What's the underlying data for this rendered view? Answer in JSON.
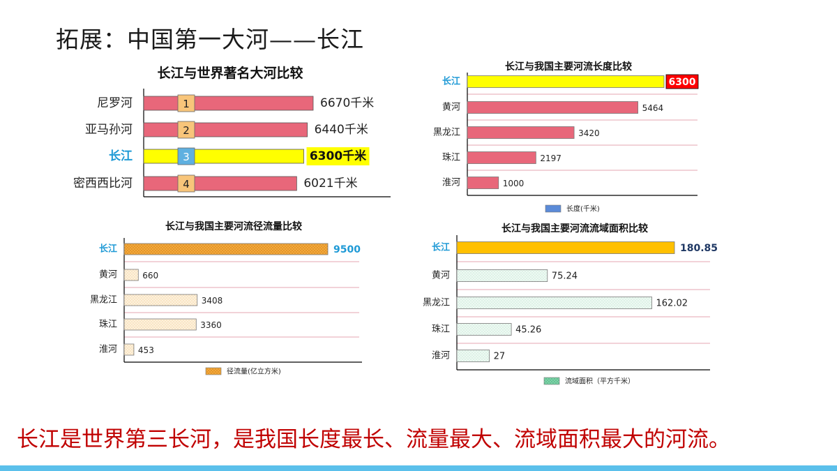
{
  "slide": {
    "title": "拓展：中国第一大河——长江",
    "conclusion": "长江是世界第三长河，是我国长度最长、流量最大、流域面积最大的河流。"
  },
  "colors": {
    "pink_bar": "#e8677a",
    "highlight_yellow": "#ffff00",
    "orange_bar": "#f4a93c",
    "gold_bar": "#ffc000",
    "beige_bar": "#fce9cc",
    "mint_bar": "#e6f6ef",
    "blue_label": "#1f9ad6",
    "red_label_bg": "#ff0000",
    "legend_blue": "#5b8bd8",
    "legend_green": "#7fd3a8",
    "navy_text": "#1f3864",
    "slide_red": "#c00000",
    "bottom_bar": "#5bc0eb"
  },
  "chart_data": [
    {
      "id": "world",
      "type": "bar",
      "orientation": "horizontal",
      "title": "长江与世界著名大河比较",
      "categories": [
        "尼罗河",
        "亚马孙河",
        "长江",
        "密西西比河"
      ],
      "values": [
        6670,
        6440,
        6300,
        6021
      ],
      "value_labels": [
        "6670千米",
        "6440千米",
        "6300千米",
        "6021千米"
      ],
      "rank_badges": [
        "1",
        "2",
        "3",
        "4"
      ],
      "highlight_index": 2,
      "grid": false,
      "legend": null
    },
    {
      "id": "length",
      "type": "bar",
      "orientation": "horizontal",
      "title": "长江与我国主要河流长度比较",
      "categories": [
        "长江",
        "黄河",
        "黑龙江",
        "珠江",
        "淮河"
      ],
      "values": [
        6300,
        5464,
        3420,
        2197,
        1000
      ],
      "value_labels": [
        "6300",
        "5464",
        "3420",
        "2197",
        "1000"
      ],
      "highlight_index": 0,
      "grid": true,
      "legend": "长度(千米)",
      "legend_position": "bottom"
    },
    {
      "id": "flow",
      "type": "bar",
      "orientation": "horizontal",
      "title": "长江与我国主要河流径流量比较",
      "categories": [
        "长江",
        "黄河",
        "黑龙江",
        "珠江",
        "淮河"
      ],
      "values": [
        9500,
        660,
        3408,
        3360,
        453
      ],
      "value_labels": [
        "9500",
        "660",
        "3408",
        "3360",
        "453"
      ],
      "highlight_index": 0,
      "grid": true,
      "legend": "径流量(亿立方米)",
      "legend_position": "bottom"
    },
    {
      "id": "area",
      "type": "bar",
      "orientation": "horizontal",
      "title": "长江与我国主要河流流域面积比较",
      "categories": [
        "长江",
        "黄河",
        "黑龙江",
        "珠江",
        "淮河"
      ],
      "values": [
        180.85,
        75.24,
        162.02,
        45.26,
        27
      ],
      "value_labels": [
        "180.85",
        "75.24",
        "162.02",
        "45.26",
        "27"
      ],
      "highlight_index": 0,
      "grid": true,
      "legend": "流域面积（平方千米）",
      "legend_position": "bottom"
    }
  ]
}
